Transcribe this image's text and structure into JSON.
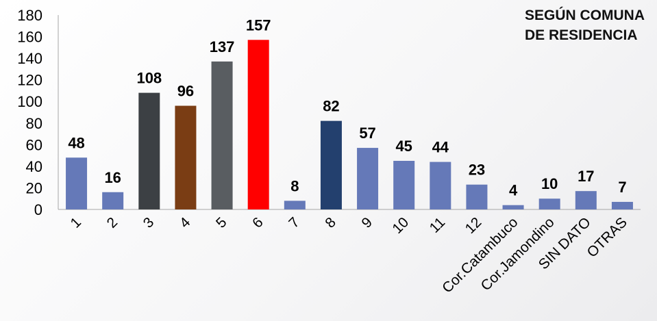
{
  "chart_data": {
    "type": "bar",
    "title": [
      "SEGÚN COMUNA",
      "DE RESIDENCIA"
    ],
    "categories": [
      "1",
      "2",
      "3",
      "4",
      "5",
      "6",
      "7",
      "8",
      "9",
      "10",
      "11",
      "12",
      "Cor.Catambuco",
      "Cor.Jamondino",
      "SIN DATO",
      "OTRAS"
    ],
    "values": [
      48,
      16,
      108,
      96,
      137,
      157,
      8,
      82,
      57,
      45,
      44,
      23,
      4,
      10,
      17,
      7
    ],
    "colors": [
      "#6579b8",
      "#6579b8",
      "#3c4044",
      "#7a3d14",
      "#595d61",
      "#ff0000",
      "#6579b8",
      "#23406e",
      "#6579b8",
      "#6579b8",
      "#6579b8",
      "#6579b8",
      "#6579b8",
      "#6579b8",
      "#6579b8",
      "#6579b8"
    ],
    "ylim": [
      0,
      180
    ],
    "yticks": [
      0,
      20,
      40,
      60,
      80,
      100,
      120,
      140,
      160,
      180
    ],
    "grid": false,
    "legend": "none",
    "xlabel": "",
    "ylabel": ""
  }
}
